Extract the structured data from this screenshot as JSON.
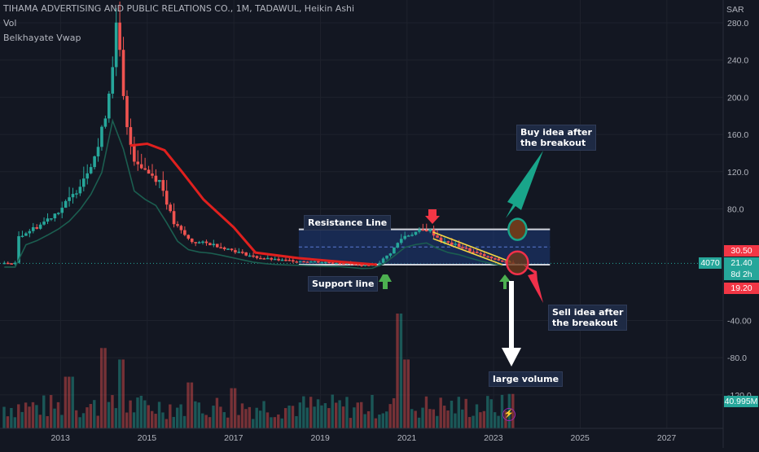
{
  "header": {
    "symbol": "TIHAMA ADVERTISING AND PUBLIC RELATIONS CO., 1M, TADAWUL, Heikin Ashi",
    "indicator1": "Vol",
    "indicator2": "Belkhayate Vwap"
  },
  "currency": "SAR",
  "price_tags": {
    "upper": "30.50",
    "price_code": "4070",
    "price": "21.40",
    "countdown": "8d 2h",
    "lower": "19.20",
    "volume": "40.995M"
  },
  "annotations": {
    "resistance": "Resistance Line",
    "support": "Support line",
    "buy_line1": "Buy idea after",
    "buy_line2": "the breakout",
    "sell_line1": "Sell idea after",
    "sell_line2": "the breakout",
    "volume": "large volume"
  },
  "colors": {
    "background": "#131722",
    "up": "#26a69a",
    "down": "#ef5350",
    "vwap": "#e0201e",
    "box": "#1e3a7a",
    "box_border": "#d1d4dc"
  },
  "chart_data": {
    "type": "candlestick",
    "style": "Heikin Ashi",
    "interval": "1M",
    "x_ticks": [
      "2013",
      "2015",
      "2017",
      "2019",
      "2021",
      "2023",
      "2025",
      "2027"
    ],
    "y_ticks": [
      "280.0",
      "240.0",
      "200.0",
      "160.0",
      "120.0",
      "80.0",
      "-40.00",
      "-80.0",
      "-120.0"
    ],
    "ylim": [
      -140,
      290
    ],
    "price_points": [
      {
        "year": 2012.0,
        "price": 50
      },
      {
        "year": 2012.5,
        "price": 62
      },
      {
        "year": 2013.0,
        "price": 80
      },
      {
        "year": 2013.3,
        "price": 95
      },
      {
        "year": 2013.6,
        "price": 120
      },
      {
        "year": 2013.9,
        "price": 150
      },
      {
        "year": 2014.1,
        "price": 200
      },
      {
        "year": 2014.3,
        "price": 280
      },
      {
        "year": 2014.5,
        "price": 170
      },
      {
        "year": 2014.7,
        "price": 135
      },
      {
        "year": 2015.0,
        "price": 120
      },
      {
        "year": 2015.3,
        "price": 110
      },
      {
        "year": 2015.6,
        "price": 65
      },
      {
        "year": 2016.0,
        "price": 45
      },
      {
        "year": 2016.5,
        "price": 42
      },
      {
        "year": 2017.0,
        "price": 35
      },
      {
        "year": 2017.5,
        "price": 28
      },
      {
        "year": 2018.0,
        "price": 25
      },
      {
        "year": 2018.5,
        "price": 24
      },
      {
        "year": 2019.0,
        "price": 23
      },
      {
        "year": 2019.5,
        "price": 22
      },
      {
        "year": 2020.0,
        "price": 19
      },
      {
        "year": 2020.3,
        "price": 20
      },
      {
        "year": 2020.6,
        "price": 32
      },
      {
        "year": 2020.9,
        "price": 50
      },
      {
        "year": 2021.2,
        "price": 55
      },
      {
        "year": 2021.5,
        "price": 58
      },
      {
        "year": 2021.8,
        "price": 45
      },
      {
        "year": 2022.2,
        "price": 40
      },
      {
        "year": 2022.6,
        "price": 32
      },
      {
        "year": 2023.0,
        "price": 26
      },
      {
        "year": 2023.4,
        "price": 21.4
      }
    ],
    "vwap_points": [
      {
        "year": 2014.6,
        "price": 148
      },
      {
        "year": 2015.0,
        "price": 150
      },
      {
        "year": 2015.4,
        "price": 143
      },
      {
        "year": 2015.8,
        "price": 120
      },
      {
        "year": 2016.3,
        "price": 90
      },
      {
        "year": 2017.0,
        "price": 60
      },
      {
        "year": 2017.5,
        "price": 33
      },
      {
        "year": 2018.5,
        "price": 27
      },
      {
        "year": 2019.5,
        "price": 23
      },
      {
        "year": 2020.3,
        "price": 20
      }
    ],
    "channel": {
      "x_start": 2018.5,
      "x_end": 2024.3,
      "upper": 58,
      "lower": 20
    },
    "volume_bars": [
      {
        "year": 2013.2,
        "value": 45
      },
      {
        "year": 2014.0,
        "value": 70
      },
      {
        "year": 2014.4,
        "value": 60
      },
      {
        "year": 2016.0,
        "value": 40
      },
      {
        "year": 2017.0,
        "value": 35
      },
      {
        "year": 2020.8,
        "value": 100
      },
      {
        "year": 2021.0,
        "value": 60
      },
      {
        "year": 2023.4,
        "value": 30
      }
    ],
    "series": [
      {
        "name": "Vol"
      },
      {
        "name": "Belkhayate Vwap"
      }
    ]
  }
}
